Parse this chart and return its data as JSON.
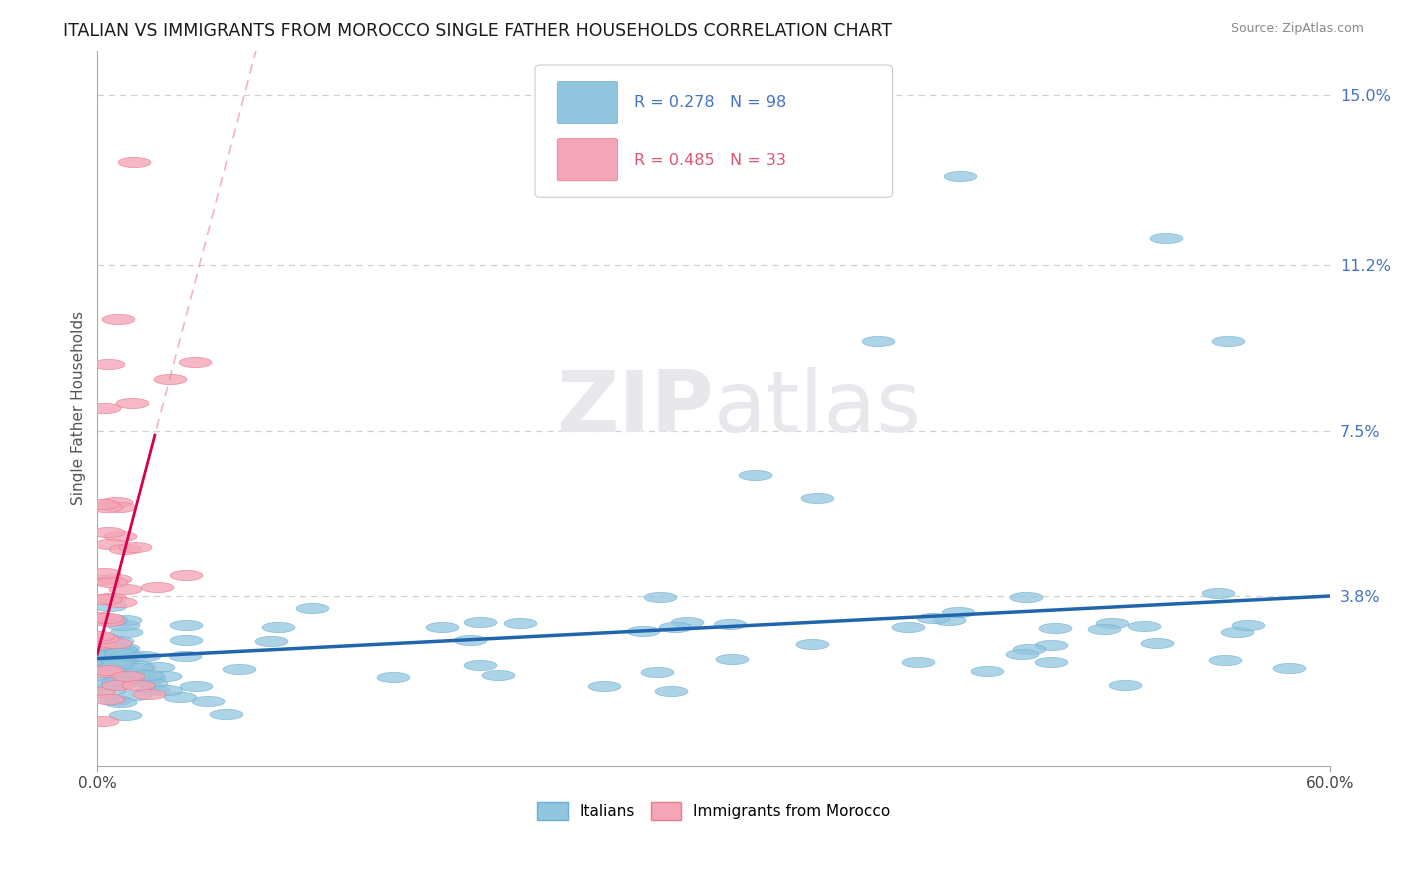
{
  "title": "ITALIAN VS IMMIGRANTS FROM MOROCCO SINGLE FATHER HOUSEHOLDS CORRELATION CHART",
  "source": "Source: ZipAtlas.com",
  "ylabel": "Single Father Households",
  "xlim": [
    0.0,
    0.6
  ],
  "ylim": [
    0.0,
    0.16
  ],
  "yticks": [
    0.038,
    0.075,
    0.112,
    0.15
  ],
  "ytick_labels": [
    "3.8%",
    "7.5%",
    "11.2%",
    "15.0%"
  ],
  "legend_italian_R": "0.278",
  "legend_italian_N": "98",
  "legend_morocco_R": "0.485",
  "legend_morocco_N": "33",
  "blue_scatter_color": "#92c5de",
  "blue_scatter_edge": "#6baed6",
  "pink_scatter_color": "#f4a6b8",
  "pink_scatter_edge": "#e87a8a",
  "blue_line_color": "#2166ac",
  "pink_line_color": "#d6004e",
  "pink_dash_color": "#e8829a",
  "background_color": "#ffffff",
  "grid_color": "#d0d0d0",
  "watermark_color": "#e8e8ec",
  "title_color": "#1a1a1a",
  "source_color": "#888888",
  "ytick_color": "#4472c4",
  "legend_text_color_blue": "#4472c4",
  "legend_text_color_pink": "#e05570"
}
